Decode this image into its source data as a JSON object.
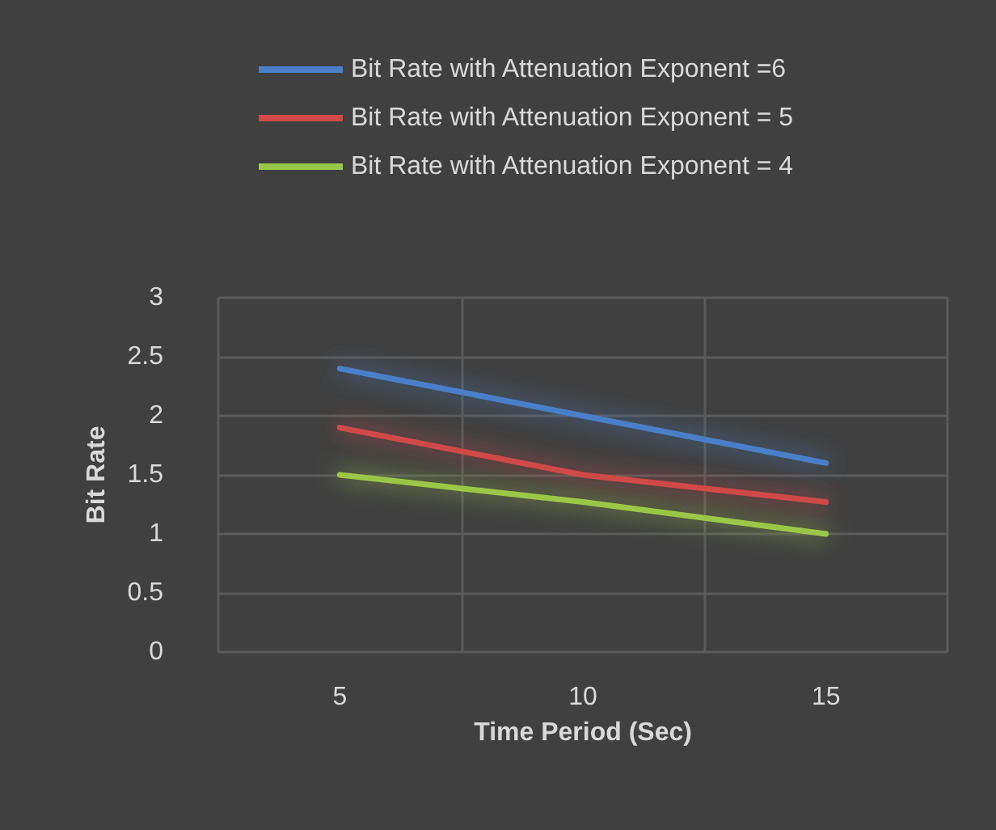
{
  "chart_data": {
    "type": "line",
    "xlabel": "Time Period (Sec)",
    "ylabel": "Bit Rate",
    "categories": [
      "5",
      "10",
      "15"
    ],
    "series": [
      {
        "name": "Bit Rate with Attenuation Exponent =6",
        "color": "#4a7fc9",
        "values": [
          2.4,
          2.0,
          1.6
        ]
      },
      {
        "name": "Bit Rate with Attenuation Exponent = 5",
        "color": "#d04848",
        "values": [
          1.9,
          1.5,
          1.27
        ]
      },
      {
        "name": "Bit Rate with Attenuation Exponent = 4",
        "color": "#9bc748",
        "values": [
          1.5,
          1.27,
          1.0
        ]
      }
    ],
    "ylim": [
      0,
      3
    ],
    "yticks": [
      0,
      0.5,
      1,
      1.5,
      2,
      2.5,
      3
    ],
    "grid": true,
    "legend": "top",
    "marker": "none",
    "line_style": "solid"
  }
}
